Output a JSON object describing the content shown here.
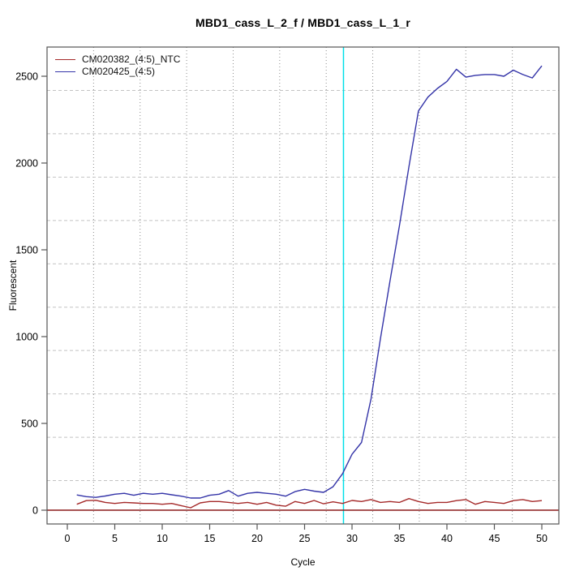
{
  "title": "MBD1_cass_L_2_f / MBD1_cass_L_1_r",
  "axes": {
    "x_label": "Cycle",
    "y_label": "Fluorescent",
    "x_ticks": [
      0,
      5,
      10,
      15,
      20,
      25,
      30,
      35,
      40,
      45,
      50
    ],
    "y_ticks": [
      0,
      500,
      1000,
      1500,
      2000,
      2500
    ]
  },
  "legend": {
    "items": [
      {
        "label": "CM020382_(4:5)_NTC",
        "color": "#A52A2A"
      },
      {
        "label": "CM020425_(4:5)",
        "color": "#3434A8"
      }
    ]
  },
  "colors": {
    "series_ntc": "#A52A2A",
    "series_sample": "#3434A8",
    "threshold_line": "#00E0E8",
    "zero_line": "#8B1A1A",
    "grid_vertical": "#8C8C8C",
    "grid_horizontal": "#C2C2C2",
    "box": "#555555",
    "tick_text": "#000000"
  },
  "chart_data": {
    "type": "line",
    "title": "MBD1_cass_L_2_f / MBD1_cass_L_1_r",
    "xlabel": "Cycle",
    "ylabel": "Fluorescent",
    "xlim": [
      -2.1,
      51.8
    ],
    "ylim": [
      -80,
      2670
    ],
    "grid": "on",
    "legend_position": "top-left",
    "threshold_line_x": 29.1,
    "zero_line_y": 0,
    "x": [
      1,
      2,
      3,
      4,
      5,
      6,
      7,
      8,
      9,
      10,
      11,
      12,
      13,
      14,
      15,
      16,
      17,
      18,
      19,
      20,
      21,
      22,
      23,
      24,
      25,
      26,
      27,
      28,
      29,
      30,
      31,
      32,
      33,
      34,
      35,
      36,
      37,
      38,
      39,
      40,
      41,
      42,
      43,
      44,
      45,
      46,
      47,
      48,
      49,
      50
    ],
    "series": [
      {
        "name": "CM020382_(4:5)_NTC",
        "color": "#A52A2A",
        "values": [
          34,
          55,
          57,
          45,
          39,
          45,
          42,
          39,
          39,
          34,
          39,
          26,
          14,
          42,
          50,
          50,
          45,
          39,
          45,
          34,
          45,
          29,
          23,
          50,
          39,
          56,
          37,
          48,
          39,
          56,
          50,
          61,
          45,
          50,
          45,
          67,
          50,
          39,
          45,
          45,
          55,
          61,
          34,
          50,
          45,
          39,
          55,
          61,
          50,
          55
        ]
      },
      {
        "name": "CM020425_(4:5)",
        "color": "#3434A8",
        "values": [
          88,
          78,
          74,
          82,
          92,
          97,
          86,
          97,
          92,
          97,
          89,
          81,
          70,
          70,
          86,
          92,
          113,
          81,
          97,
          103,
          97,
          92,
          81,
          107,
          120,
          110,
          103,
          135,
          210,
          322,
          390,
          640,
          990,
          1320,
          1640,
          1980,
          2300,
          2380,
          2430,
          2470,
          2540,
          2495,
          2505,
          2510,
          2510,
          2500,
          2535,
          2510,
          2490,
          2560
        ]
      }
    ]
  }
}
